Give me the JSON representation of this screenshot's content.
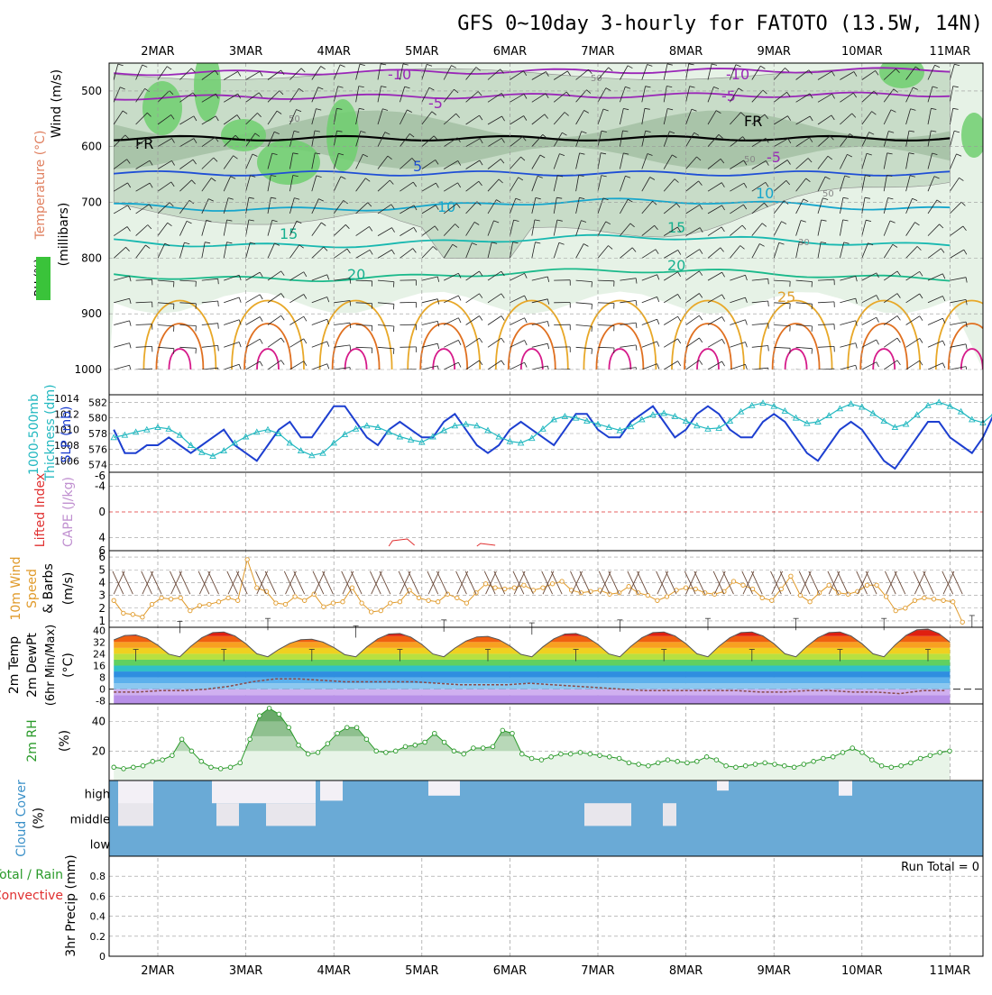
{
  "title": "GFS 0~10day 3-hourly for FATOTO (13.5W, 14N)",
  "dates": [
    "2MAR",
    "3MAR",
    "4MAR",
    "5MAR",
    "6MAR",
    "7MAR",
    "8MAR",
    "9MAR",
    "10MAR",
    "11MAR"
  ],
  "colors": {
    "rh_light": "#e6f2e6",
    "rh_mid": "#c8dcc8",
    "rh_dark": "#8fb08f",
    "rh_green": "#6ecf6e",
    "temp_purple": "#9a26b8",
    "temp_blue": "#1f4fd6",
    "temp_cyan": "#16a6cc",
    "thickness": "#22b8c0",
    "slp": "#1d3fd0",
    "lifted": "#e03030",
    "wind10": "#e09a2a",
    "barb": "#6b4a3a",
    "cloud": "#6aaad6",
    "rh2m": "#2a9a2a",
    "precip_total": "#2a9a2a",
    "precip_conv": "#e03030"
  },
  "panels": {
    "upper": {
      "ylabels": [
        "Wind (m/s)",
        "Temperature (°C)",
        "RH (%)",
        "(millibars)"
      ],
      "yticks": [
        500,
        600,
        700,
        800,
        900,
        1000
      ],
      "contour_labels": [
        {
          "text": "-10",
          "v": 470
        },
        {
          "text": "-10",
          "v": 470
        },
        {
          "text": "-5",
          "v": 510
        },
        {
          "text": "-5",
          "v": 490
        },
        {
          "text": "FR",
          "v": 600
        },
        {
          "text": "FR",
          "v": 565
        },
        {
          "text": "5",
          "v": 645
        },
        {
          "text": "-5",
          "v": 628
        },
        {
          "text": "10",
          "v": 715
        },
        {
          "text": "10",
          "v": 690
        },
        {
          "text": "15",
          "v": 780
        },
        {
          "text": "15",
          "v": 760
        },
        {
          "text": "20",
          "v": 835
        },
        {
          "text": "20",
          "v": 815
        },
        {
          "text": "25",
          "v": 875
        },
        {
          "text": "50",
          "v": 560
        },
        {
          "text": "50",
          "v": 480
        },
        {
          "text": "50",
          "v": 630
        },
        {
          "text": "50",
          "v": 690
        },
        {
          "text": "30",
          "v": 790
        }
      ],
      "isotherms": [
        {
          "label": "-10",
          "base": 468
        },
        {
          "label": "-5",
          "base": 512
        },
        {
          "label": "FR",
          "base": 585
        },
        {
          "label": "5",
          "base": 648
        },
        {
          "label": "10",
          "base": 705
        },
        {
          "label": "15",
          "base": 770
        },
        {
          "label": "20",
          "base": 830
        }
      ]
    },
    "thickness": {
      "ylabels": [
        "1000-500mb",
        "Thickness (dm)",
        "SLP (mb)"
      ],
      "yticks_left": [
        574,
        576,
        578,
        580,
        582
      ],
      "yticks_right": [
        1006,
        1008,
        1010,
        1012,
        1014
      ]
    },
    "cape": {
      "ylabels": [
        "Lifted Index",
        "CAPE (J/kg)"
      ],
      "yticks": [
        "-4",
        "0",
        "4"
      ]
    },
    "wind10": {
      "ylabels": [
        "10m Wind",
        "Speed",
        "& Barbs",
        "(m/s)"
      ],
      "yticks": [
        1,
        2,
        3,
        4,
        5,
        6
      ]
    },
    "temp": {
      "ylabels": [
        "2m Temp",
        "2m DewPt",
        "(6hr Min/Max)",
        "(°C)"
      ],
      "yticks": [
        -8,
        0,
        8,
        16,
        24,
        32,
        40
      ]
    },
    "rh2m": {
      "ylabels": [
        "2m RH",
        "(%)"
      ],
      "yticks": [
        20,
        40
      ]
    },
    "cloud": {
      "ylabels": [
        "Cloud Cover",
        "(%)"
      ],
      "rows": [
        "high",
        "middle",
        "low"
      ]
    },
    "precip": {
      "ylabels": [
        "3hr Precip (mm)",
        "Total / Rain",
        "Convective"
      ],
      "yticks": [
        0,
        0.2,
        0.4,
        0.6,
        0.8
      ],
      "run_total": "Run Total = 0"
    }
  },
  "chart_data": [
    {
      "type": "line",
      "name": "slp",
      "ylabel": "SLP (mb)",
      "ylim": [
        1005,
        1014
      ],
      "x_start": "1MAR 12Z",
      "x_step_hours": 3,
      "values": [
        1010,
        1007,
        1007,
        1008,
        1008,
        1009,
        1008,
        1007,
        1008,
        1009,
        1010,
        1008,
        1007,
        1006,
        1008,
        1010,
        1011,
        1009,
        1009,
        1011,
        1013,
        1013,
        1011,
        1009,
        1008,
        1010,
        1011,
        1010,
        1009,
        1009,
        1011,
        1012,
        1010,
        1008,
        1007,
        1008,
        1010,
        1011,
        1010,
        1009,
        1008,
        1010,
        1012,
        1012,
        1010,
        1009,
        1009,
        1011,
        1012,
        1013,
        1011,
        1009,
        1010,
        1012,
        1013,
        1012,
        1010,
        1009,
        1009,
        1011,
        1012,
        1011,
        1009,
        1007,
        1006,
        1008,
        1010,
        1011,
        1010,
        1008,
        1006,
        1005,
        1007,
        1009,
        1011,
        1011,
        1009,
        1008,
        1007,
        1009,
        1012,
        1011,
        1008,
        1007,
        1009,
        1010
      ]
    },
    {
      "type": "line",
      "name": "thickness",
      "ylabel": "Thickness (dm)",
      "ylim": [
        573.5,
        582.5
      ],
      "x_step_hours": 3,
      "values": [
        577.5,
        577.8,
        578.2,
        578.5,
        578.8,
        578.6,
        577.8,
        576.5,
        575.6,
        575.1,
        575.8,
        576.8,
        577.6,
        578.2,
        578.5,
        578.0,
        576.8,
        575.8,
        575.2,
        575.5,
        576.8,
        577.9,
        578.6,
        579.0,
        578.8,
        578.2,
        577.6,
        577.2,
        576.9,
        577.6,
        578.4,
        579.0,
        579.2,
        579.0,
        578.4,
        577.6,
        577.0,
        576.8,
        577.4,
        578.6,
        579.8,
        580.2,
        580.0,
        579.6,
        579.2,
        578.8,
        578.4,
        578.9,
        579.8,
        580.4,
        580.6,
        580.2,
        579.6,
        579.0,
        578.6,
        578.7,
        579.6,
        580.8,
        581.6,
        581.9,
        581.5,
        580.9,
        580.0,
        579.3,
        579.5,
        580.3,
        581.2,
        581.8,
        581.4,
        580.6,
        579.6,
        578.8,
        579.2,
        580.4,
        581.6,
        582.0,
        581.5,
        580.8,
        579.8,
        579.4,
        580.6,
        581.7,
        582.1,
        581.3,
        580.2,
        579.5
      ]
    },
    {
      "type": "line",
      "name": "wind10m",
      "ylabel": "(m/s)",
      "ylim": [
        0.5,
        6.5
      ],
      "x_step_hours": 3,
      "values": [
        2.6,
        1.6,
        1.5,
        1.3,
        2.3,
        2.8,
        2.7,
        2.8,
        1.8,
        2.2,
        2.3,
        2.5,
        2.8,
        2.6,
        5.8,
        3.6,
        3.3,
        2.4,
        2.3,
        2.9,
        2.6,
        3.1,
        2.1,
        2.4,
        2.5,
        3.6,
        2.4,
        1.7,
        1.8,
        2.4,
        2.5,
        3.4,
        2.8,
        2.6,
        2.5,
        3.1,
        2.8,
        2.4,
        3.2,
        3.9,
        3.6,
        3.5,
        3.6,
        3.8,
        3.4,
        3.6,
        3.9,
        4.1,
        3.4,
        3.2,
        3.3,
        3.4,
        3.1,
        3.2,
        3.7,
        3.2,
        3.0,
        2.6,
        2.9,
        3.4,
        3.6,
        3.5,
        3.2,
        3.1,
        3.3,
        4.1,
        3.8,
        3.5,
        2.8,
        2.6,
        3.5,
        4.5,
        3.0,
        2.5,
        3.2,
        3.8,
        3.2,
        3.1,
        3.3,
        3.8,
        3.8,
        2.9,
        1.8,
        2.0,
        2.6,
        2.8,
        2.7,
        2.6,
        2.5,
        0.9
      ]
    },
    {
      "type": "area",
      "name": "temp2m",
      "ylabel": "(°C)",
      "ylim": [
        -10,
        42
      ],
      "x_step_hours": 3,
      "min_per_day": 22,
      "max_per_day": [
        37,
        39,
        34,
        38,
        36,
        38,
        39,
        39,
        39,
        41
      ],
      "dewpoint": [
        -2,
        -2,
        -1,
        -1,
        0,
        2,
        5,
        7,
        7,
        6,
        5,
        5,
        5,
        5,
        4,
        3,
        3,
        3,
        4,
        3,
        2,
        1,
        0,
        -1,
        -1,
        -1,
        -1,
        -1,
        -2,
        -2,
        -1,
        -1,
        -2,
        -2,
        -3,
        -1,
        -1
      ]
    },
    {
      "type": "area",
      "name": "rh2m",
      "ylabel": "(%)",
      "ylim": [
        0,
        52
      ],
      "x_step_hours": 3,
      "values": [
        9,
        8,
        9,
        10,
        13,
        14,
        17,
        28,
        20,
        13,
        9,
        8,
        9,
        12,
        28,
        44,
        49,
        45,
        36,
        24,
        18,
        19,
        25,
        32,
        36,
        36,
        28,
        20,
        19,
        20,
        23,
        24,
        26,
        32,
        26,
        20,
        18,
        22,
        22,
        23,
        34,
        32,
        18,
        15,
        14,
        16,
        18,
        18,
        19,
        18,
        17,
        16,
        15,
        12,
        11,
        10,
        12,
        14,
        13,
        12,
        13,
        16,
        14,
        10,
        9,
        10,
        11,
        12,
        11,
        10,
        9,
        11,
        13,
        15,
        16,
        19,
        22,
        19,
        14,
        10,
        9,
        10,
        12,
        15,
        17,
        19,
        20
      ]
    },
    {
      "type": "bar",
      "name": "precip",
      "ylabel": "3hr Precip (mm)",
      "ylim": [
        0,
        1
      ],
      "values": []
    }
  ]
}
